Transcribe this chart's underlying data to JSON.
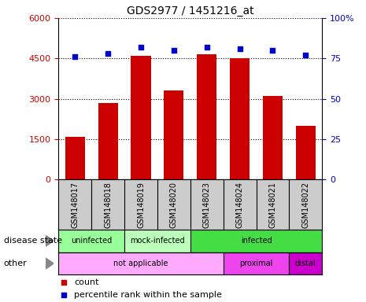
{
  "title": "GDS2977 / 1451216_at",
  "samples": [
    "GSM148017",
    "GSM148018",
    "GSM148019",
    "GSM148020",
    "GSM148023",
    "GSM148024",
    "GSM148021",
    "GSM148022"
  ],
  "counts": [
    1600,
    2850,
    4600,
    3300,
    4650,
    4500,
    3100,
    2000
  ],
  "percentiles": [
    76,
    78,
    82,
    80,
    82,
    81,
    80,
    77
  ],
  "bar_color": "#cc0000",
  "dot_color": "#0000cc",
  "ylim_left": [
    0,
    6000
  ],
  "ylim_right": [
    0,
    100
  ],
  "yticks_left": [
    0,
    1500,
    3000,
    4500,
    6000
  ],
  "ytick_labels_left": [
    "0",
    "1500",
    "3000",
    "4500",
    "6000"
  ],
  "yticks_right": [
    0,
    25,
    50,
    75,
    100
  ],
  "ytick_labels_right": [
    "0",
    "25",
    "50",
    "75",
    "100%"
  ],
  "disease_state_groups": [
    {
      "label": "uninfected",
      "start": 0,
      "end": 2,
      "color": "#99ff99"
    },
    {
      "label": "mock-infected",
      "start": 2,
      "end": 4,
      "color": "#bbffbb"
    },
    {
      "label": "infected",
      "start": 4,
      "end": 8,
      "color": "#44dd44"
    }
  ],
  "other_groups": [
    {
      "label": "not applicable",
      "start": 0,
      "end": 5,
      "color": "#ffaaff"
    },
    {
      "label": "proximal",
      "start": 5,
      "end": 7,
      "color": "#ee44ee"
    },
    {
      "label": "distal",
      "start": 7,
      "end": 8,
      "color": "#cc00cc"
    }
  ],
  "background_color": "#ffffff",
  "tick_area_bg": "#cccccc"
}
